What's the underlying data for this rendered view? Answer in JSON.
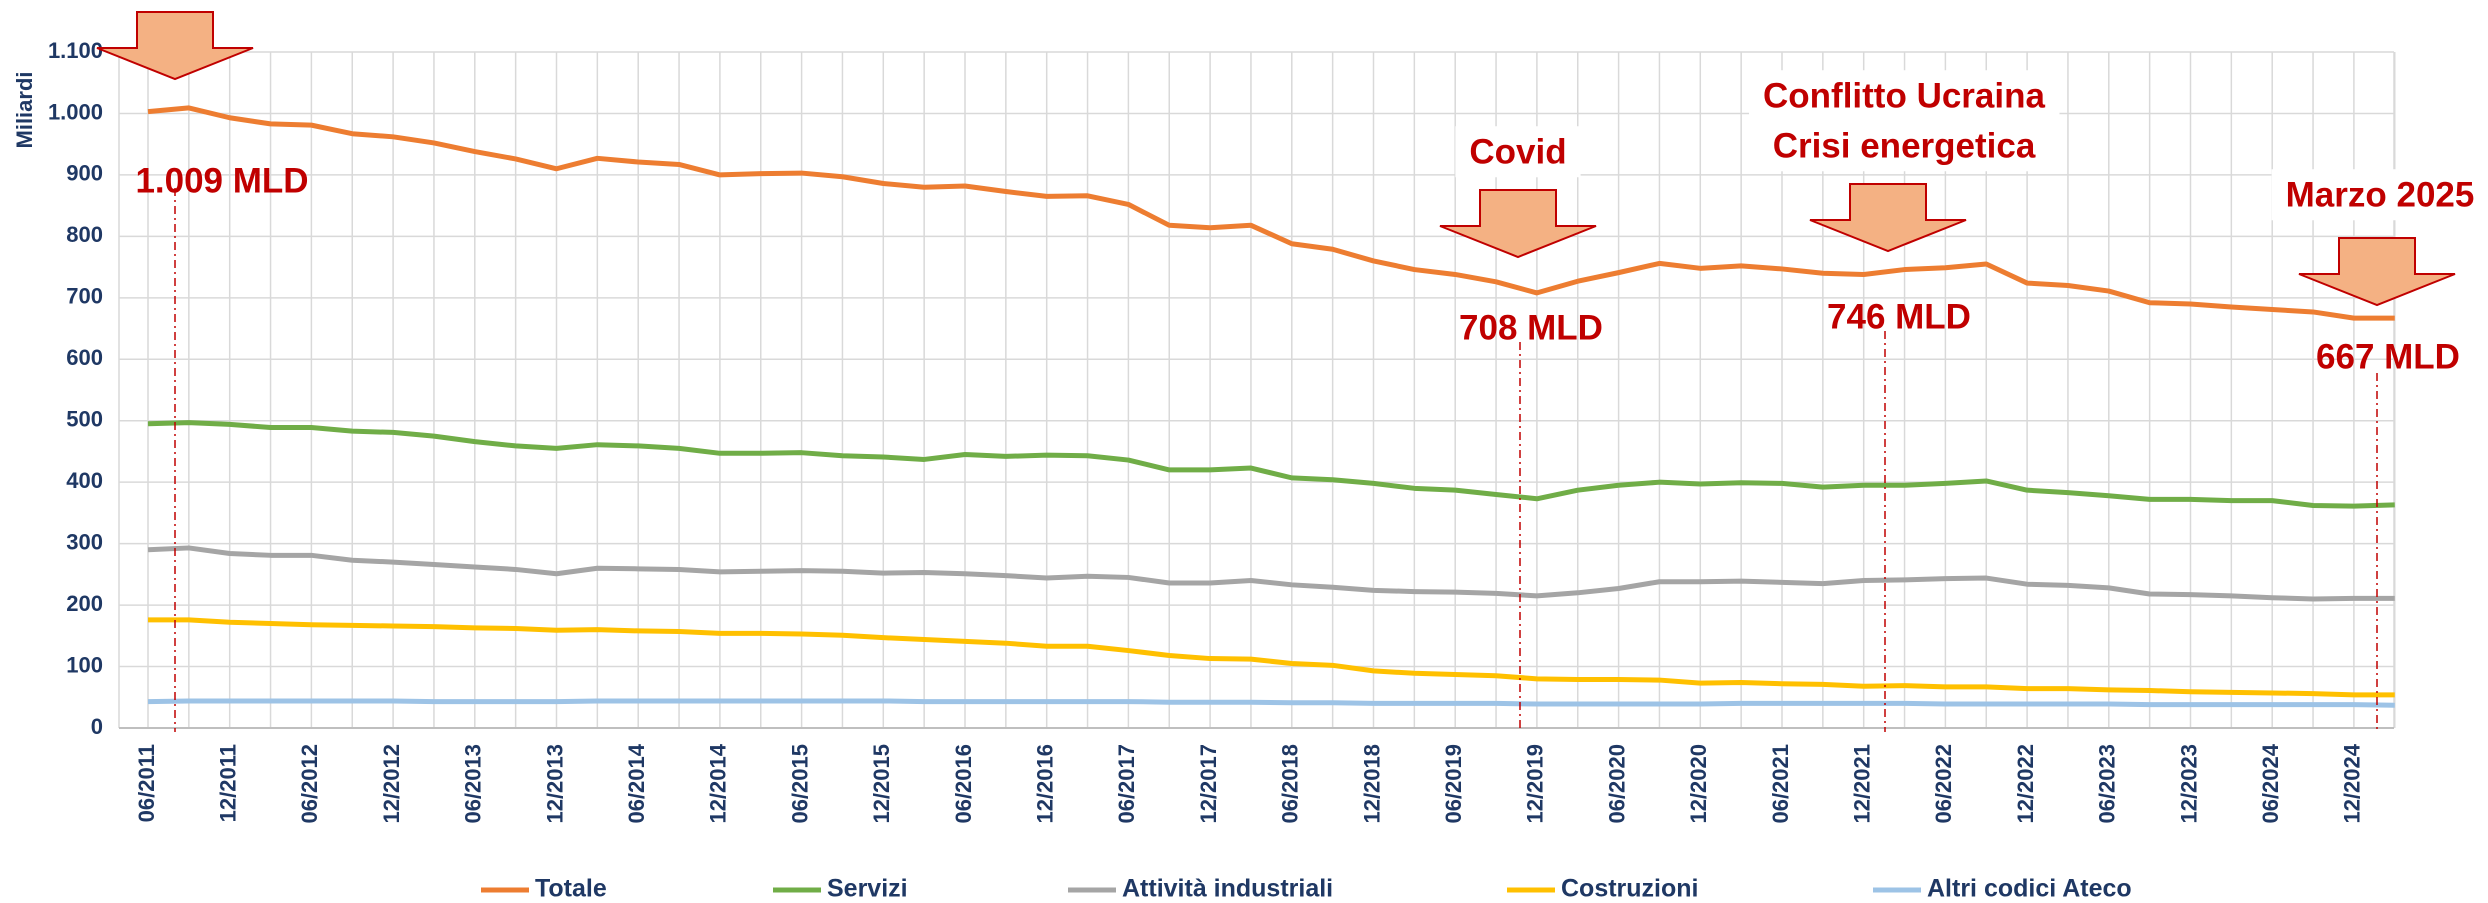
{
  "chart_data": {
    "type": "line",
    "y_label": "Miliardi",
    "categories": [
      "06/2011",
      null,
      "12/2011",
      null,
      "06/2012",
      null,
      "12/2012",
      null,
      "06/2013",
      null,
      "12/2013",
      null,
      "06/2014",
      null,
      "12/2014",
      null,
      "06/2015",
      null,
      "12/2015",
      null,
      "06/2016",
      null,
      "12/2016",
      null,
      "06/2017",
      null,
      "12/2017",
      null,
      "06/2018",
      null,
      "12/2018",
      null,
      "06/2019",
      null,
      "12/2019",
      null,
      "06/2020",
      null,
      "12/2020",
      null,
      "06/2021",
      null,
      "12/2021",
      null,
      "06/2022",
      null,
      "12/2022",
      null,
      "06/2023",
      null,
      "12/2023",
      null,
      "06/2024",
      null,
      "12/2024",
      null
    ],
    "series": [
      {
        "name": "Totale",
        "color": "#ed7d31",
        "values": [
          1003,
          1009,
          993,
          983,
          981,
          967,
          962,
          952,
          938,
          926,
          910,
          927,
          921,
          917,
          900,
          902,
          903,
          897,
          886,
          880,
          882,
          873,
          865,
          866,
          852,
          818,
          814,
          818,
          788,
          779,
          760,
          746,
          738,
          726,
          708,
          727,
          741,
          756,
          748,
          752,
          747,
          740,
          738,
          746,
          749,
          755,
          724,
          720,
          711,
          692,
          690,
          685,
          681,
          677,
          667,
          667
        ]
      },
      {
        "name": "Servizi",
        "color": "#70ad47",
        "values": [
          495,
          497,
          494,
          489,
          489,
          483,
          481,
          475,
          466,
          459,
          455,
          461,
          459,
          455,
          447,
          447,
          448,
          443,
          441,
          437,
          445,
          442,
          444,
          443,
          436,
          420,
          420,
          423,
          407,
          404,
          398,
          390,
          387,
          380,
          373,
          387,
          395,
          400,
          397,
          399,
          398,
          392,
          395,
          395,
          398,
          402,
          387,
          383,
          378,
          372,
          372,
          370,
          370,
          362,
          361,
          363
        ]
      },
      {
        "name": "Attività industriali",
        "color": "#a5a5a5",
        "values": [
          290,
          293,
          284,
          281,
          281,
          273,
          270,
          266,
          262,
          258,
          251,
          260,
          259,
          258,
          254,
          255,
          256,
          255,
          252,
          253,
          251,
          248,
          244,
          247,
          245,
          236,
          236,
          240,
          233,
          229,
          224,
          222,
          221,
          219,
          215,
          220,
          227,
          238,
          238,
          239,
          237,
          235,
          240,
          241,
          243,
          244,
          234,
          232,
          228,
          218,
          217,
          215,
          212,
          210,
          211,
          211
        ]
      },
      {
        "name": "Costruzioni",
        "color": "#ffc000",
        "values": [
          176,
          176,
          172,
          170,
          168,
          167,
          166,
          165,
          163,
          162,
          159,
          160,
          158,
          157,
          154,
          154,
          153,
          151,
          147,
          144,
          141,
          138,
          133,
          133,
          126,
          118,
          113,
          112,
          105,
          102,
          93,
          89,
          87,
          85,
          80,
          79,
          79,
          78,
          73,
          74,
          72,
          71,
          68,
          69,
          67,
          67,
          64,
          64,
          62,
          61,
          59,
          58,
          57,
          56,
          54,
          54
        ]
      },
      {
        "name": "Altri codici Ateco",
        "color": "#9dc3e6",
        "values": [
          43,
          44,
          44,
          44,
          44,
          44,
          44,
          43,
          43,
          43,
          43,
          44,
          44,
          44,
          44,
          44,
          44,
          44,
          44,
          43,
          43,
          43,
          43,
          43,
          43,
          42,
          42,
          42,
          41,
          41,
          40,
          40,
          40,
          40,
          39,
          39,
          39,
          39,
          39,
          40,
          40,
          40,
          40,
          40,
          39,
          39,
          39,
          39,
          39,
          38,
          38,
          38,
          38,
          38,
          38,
          37
        ]
      }
    ],
    "ylim": [
      0,
      1100
    ],
    "yticks": [
      0,
      100,
      200,
      300,
      400,
      500,
      600,
      700,
      800,
      900,
      {
        "value": 1000,
        "label": "1.000"
      },
      {
        "value": 1100,
        "label": "1.100"
      }
    ],
    "grid": true,
    "legend": "bottom",
    "annotations": [
      "1.009 MLD",
      "Covid",
      "708 MLD",
      "Conflitto Ucraina",
      "Crisi energetica",
      "746 MLD",
      "Marzo 2025",
      "667 MLD"
    ]
  }
}
